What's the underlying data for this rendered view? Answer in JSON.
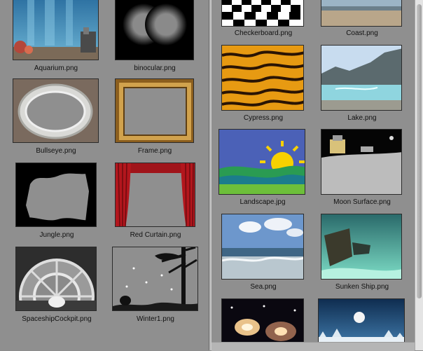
{
  "left_column": [
    {
      "label": "Aquarium.png",
      "icon": "aquarium-image"
    },
    {
      "label": "binocular.png",
      "icon": "binocular-image"
    },
    {
      "label": "Bullseye.png",
      "icon": "bullseye-image"
    },
    {
      "label": "Frame.png",
      "icon": "frame-image"
    },
    {
      "label": "Jungle.png",
      "icon": "jungle-image"
    },
    {
      "label": "Red Curtain.png",
      "icon": "red-curtain-image"
    },
    {
      "label": "SpaceshipCockpit.png",
      "icon": "spaceship-cockpit-image"
    },
    {
      "label": "Winter1.png",
      "icon": "winter-image"
    }
  ],
  "right_column": [
    {
      "label": "Checkerboard.png",
      "icon": "checkerboard-image"
    },
    {
      "label": "Coast.png",
      "icon": "coast-image"
    },
    {
      "label": "Cypress.png",
      "icon": "cypress-image"
    },
    {
      "label": "Lake.png",
      "icon": "lake-image"
    },
    {
      "label": "Landscape.jpg",
      "icon": "landscape-image"
    },
    {
      "label": "Moon Surface.png",
      "icon": "moon-surface-image"
    },
    {
      "label": "Sea.png",
      "icon": "sea-image"
    },
    {
      "label": "Sunken Ship.png",
      "icon": "sunken-ship-image"
    },
    {
      "label": "",
      "icon": "galaxy-image"
    },
    {
      "label": "",
      "icon": "night-winter-image"
    }
  ]
}
